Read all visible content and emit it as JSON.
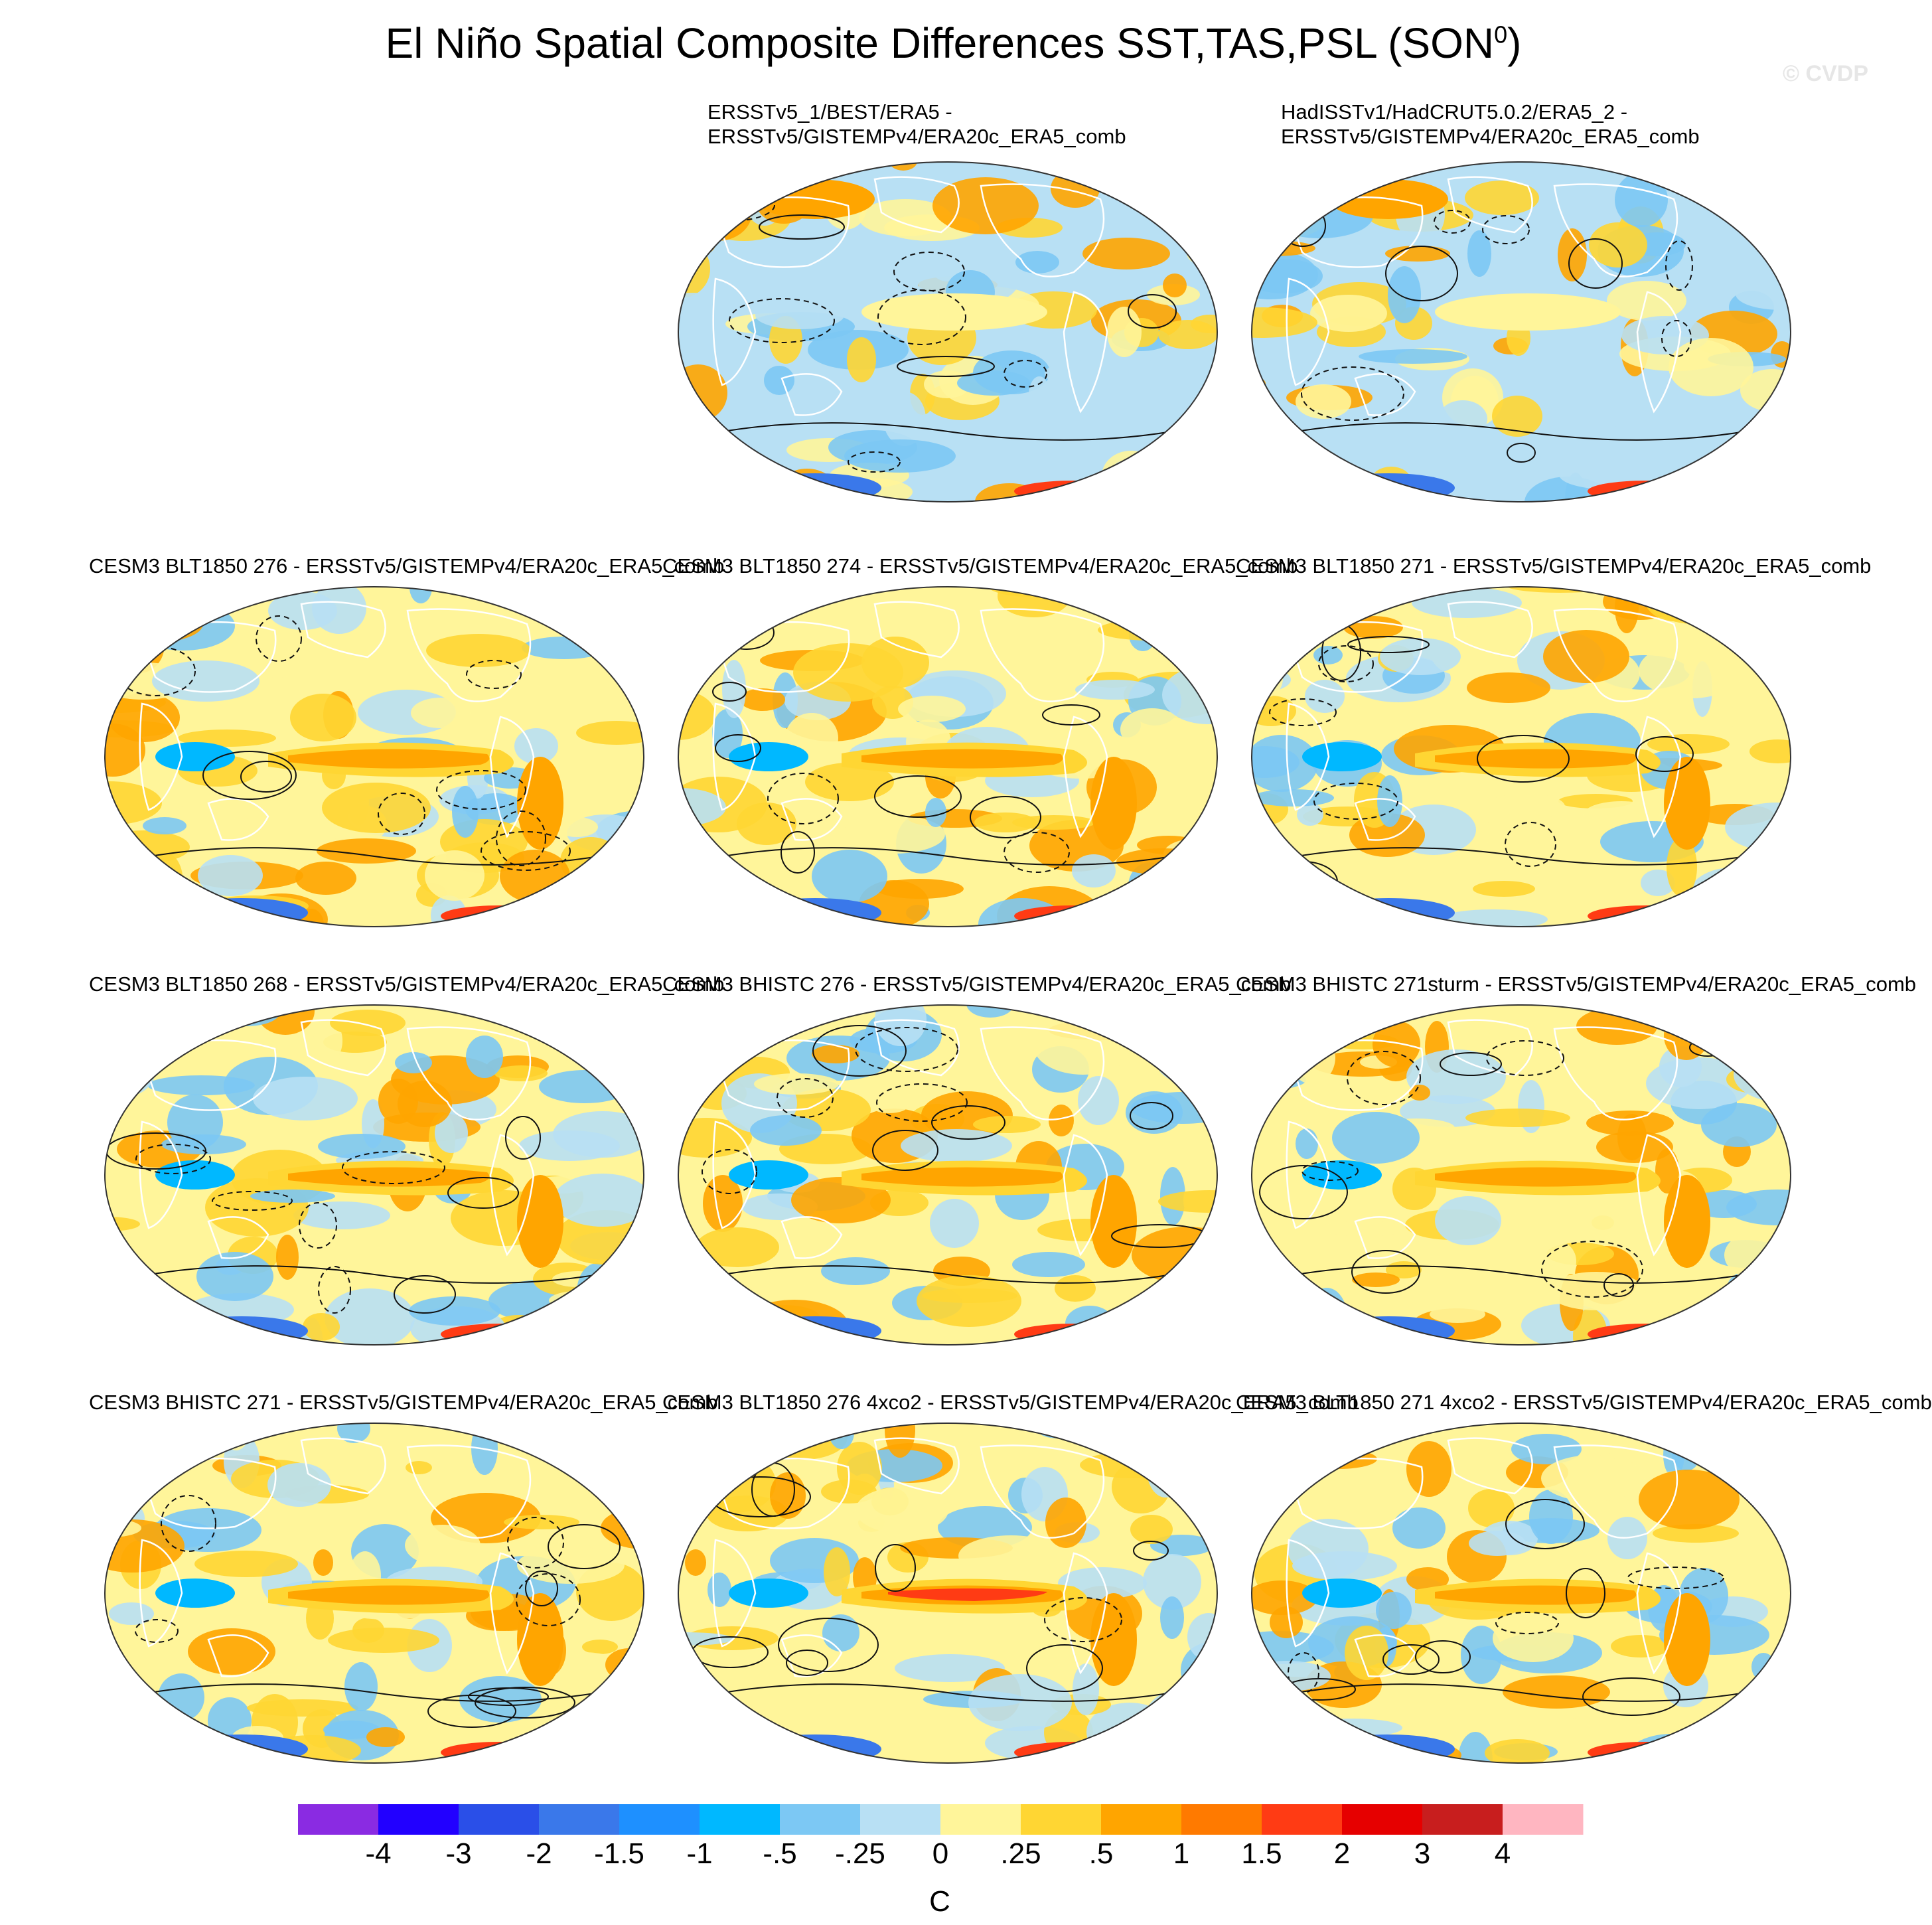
{
  "figure": {
    "title": "El Niño Spatial Composite Differences SST,TAS,PSL (SON",
    "title_superscript": "0",
    "title_close": ")",
    "watermark": "© CVDP"
  },
  "panels": [
    {
      "title_lines": [
        "ERSSTv5_1/BEST/ERA5 -",
        "ERSSTv5/GISTEMPv4/ERA20c_ERA5_comb"
      ],
      "pattern": "obs1"
    },
    {
      "title_lines": [
        "HadISSTv1/HadCRUT5.0.2/ERA5_2 -",
        "ERSSTv5/GISTEMPv4/ERA20c_ERA5_comb"
      ],
      "pattern": "obs2"
    },
    {
      "title_lines": [
        "CESM3 BLT1850 276 - ERSSTv5/GISTEMPv4/ERA20c_ERA5_comb"
      ],
      "pattern": "model"
    },
    {
      "title_lines": [
        "CESM3 BLT1850 274 - ERSSTv5/GISTEMPv4/ERA20c_ERA5_comb"
      ],
      "pattern": "model"
    },
    {
      "title_lines": [
        "CESM3 BLT1850 271 - ERSSTv5/GISTEMPv4/ERA20c_ERA5_comb"
      ],
      "pattern": "model"
    },
    {
      "title_lines": [
        "CESM3 BLT1850 268 - ERSSTv5/GISTEMPv4/ERA20c_ERA5_comb"
      ],
      "pattern": "model"
    },
    {
      "title_lines": [
        "CESM3 BHISTC 276 - ERSSTv5/GISTEMPv4/ERA20c_ERA5_comb"
      ],
      "pattern": "model"
    },
    {
      "title_lines": [
        "CESM3 BHISTC 271sturm - ERSSTv5/GISTEMPv4/ERA20c_ERA5_comb"
      ],
      "pattern": "model"
    },
    {
      "title_lines": [
        "CESM3 BHISTC 271 - ERSSTv5/GISTEMPv4/ERA20c_ERA5_comb"
      ],
      "pattern": "model"
    },
    {
      "title_lines": [
        "CESM3 BLT1850 276 4xco2 - ERSSTv5/GISTEMPv4/ERA20c_ERA5_comb"
      ],
      "pattern": "model-strong"
    },
    {
      "title_lines": [
        "CESM3 BLT1850 271 4xco2 - ERSSTv5/GISTEMPv4/ERA20c_ERA5_comb"
      ],
      "pattern": "model"
    }
  ],
  "colorbar": {
    "colors": [
      "#8a2be2",
      "#2200ff",
      "#2a4fe8",
      "#3a78ea",
      "#1e90ff",
      "#00b8ff",
      "#7cc8f4",
      "#b8e0f4",
      "#fff59a",
      "#ffd633",
      "#ffa500",
      "#ff7a00",
      "#ff3b14",
      "#e60000",
      "#c81e1e",
      "#ffb6c1"
    ],
    "labels": [
      "-4",
      "-3",
      "-2",
      "-1.5",
      "-1",
      "-.5",
      "-.25",
      "0",
      ".25",
      ".5",
      "1",
      "1.5",
      "2",
      "3",
      "4"
    ],
    "unit": "C"
  }
}
